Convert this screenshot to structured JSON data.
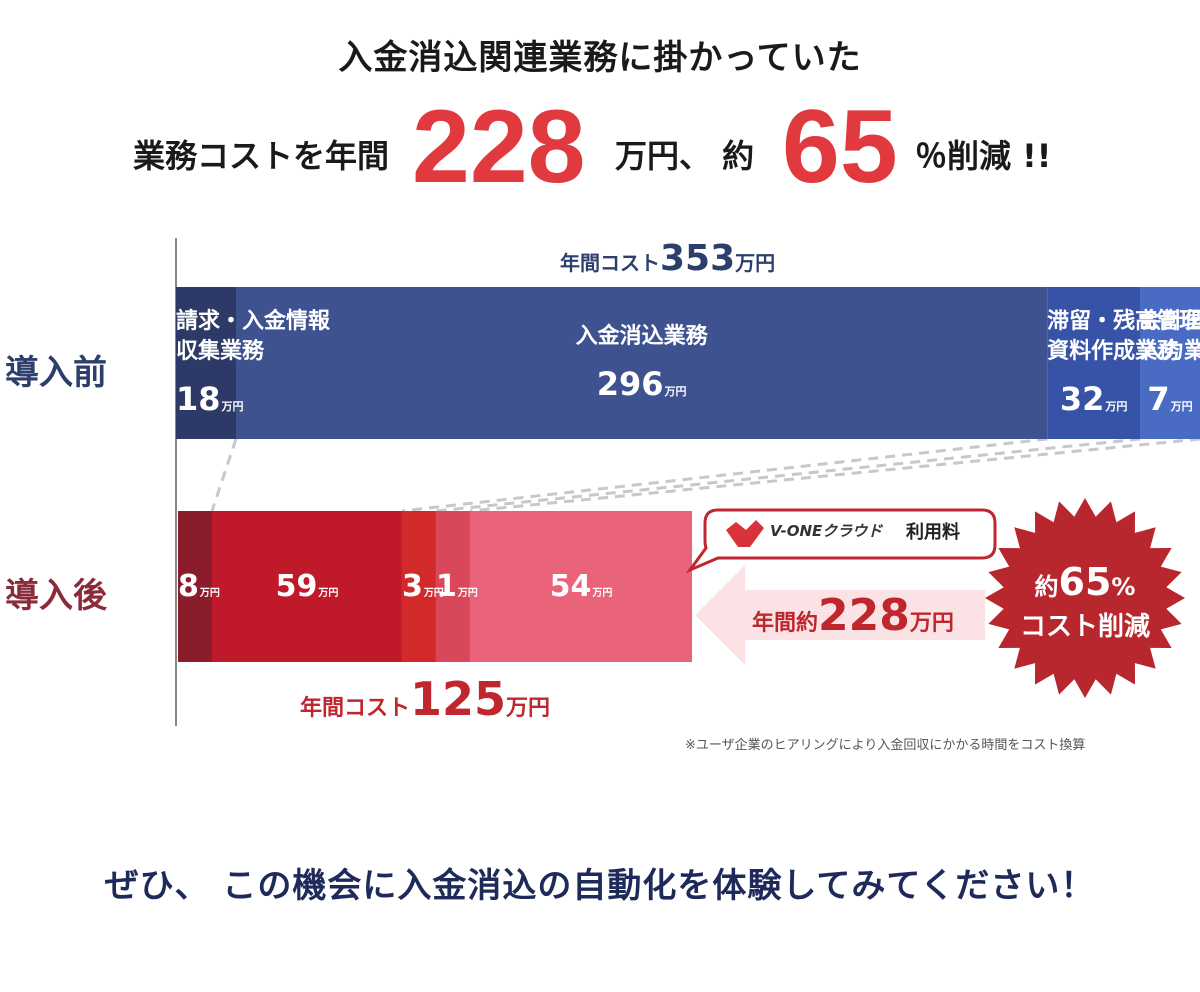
{
  "headline": {
    "line1": "入金消込関連業務に掛かっていた",
    "line2_prefix": "業務コストを年間",
    "line2_amount": "228",
    "line2_mid": "万円、 約",
    "line2_percent": "65",
    "line2_suffix": "％削減 !!"
  },
  "chart_data": {
    "type": "bar",
    "orientation": "horizontal-stacked",
    "unit": "万円",
    "rows": [
      {
        "label": "導入前",
        "total_label": "年間コスト",
        "total": 353,
        "segments": [
          {
            "name_lines": [
              "請求・入金情報",
              "収集業務"
            ],
            "value": 18,
            "color": "#2d3a68"
          },
          {
            "name_lines": [
              "入金消込業務"
            ],
            "value": 296,
            "color": "#3f5290"
          },
          {
            "name_lines": [
              "滞留・残高管理",
              "資料作成業務"
            ],
            "value": 32,
            "color": "#3753a7"
          },
          {
            "name_lines": [
              "会計伝票",
              "入力業務"
            ],
            "value": 7,
            "color": "#4a6bc4"
          }
        ]
      },
      {
        "label": "導入後",
        "total_label": "年間コスト",
        "total": 125,
        "segments": [
          {
            "value": 8,
            "color": "#8a1c2c"
          },
          {
            "value": 59,
            "color": "#c0192a"
          },
          {
            "value": 3,
            "color": "#d22a2a"
          },
          {
            "value": 1,
            "color": "#d9475b"
          },
          {
            "value": 54,
            "color": "#e9637a"
          }
        ]
      }
    ],
    "callout": {
      "brand": "V-ONEクラウド",
      "brand_suffix": "利用料",
      "reduction_prefix": "年間約",
      "reduction_amount": "228",
      "badge_line1_prefix": "約",
      "badge_percent": "65",
      "badge_percent_unit": "%",
      "badge_line2": "コスト削減"
    },
    "note": "※ユーザ企業のヒアリングにより入金回収にかかる時間をコスト換算"
  },
  "footer": "ぜひ、 この機会に入金消込の自動化を体験してみてください！",
  "colors": {
    "accent_red": "#e03a3e",
    "navy": "#2c3e6b",
    "dark_red": "#8a2b3a"
  }
}
